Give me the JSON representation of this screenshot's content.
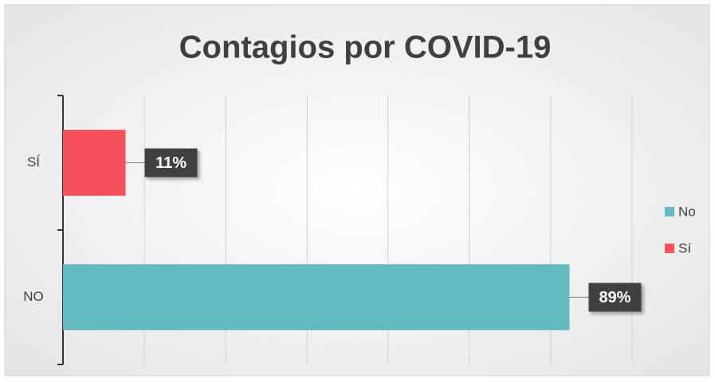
{
  "chart_data": {
    "type": "hbar",
    "title": "Contagios por COVID-19",
    "categories": [
      "SÍ",
      "NO"
    ],
    "series": [
      {
        "name": "No",
        "color": "#63bbc0",
        "values": [
          null,
          89
        ],
        "value_labels": [
          null,
          "89%"
        ]
      },
      {
        "name": "Sí",
        "color": "#f7505a",
        "values": [
          11,
          null
        ],
        "value_labels": [
          "11%",
          null
        ]
      }
    ],
    "xlim": [
      0,
      100
    ],
    "xticks": [
      0,
      14.3,
      28.6,
      42.9,
      57.1,
      71.4,
      85.7,
      100
    ],
    "grid": true,
    "legend": "right"
  }
}
